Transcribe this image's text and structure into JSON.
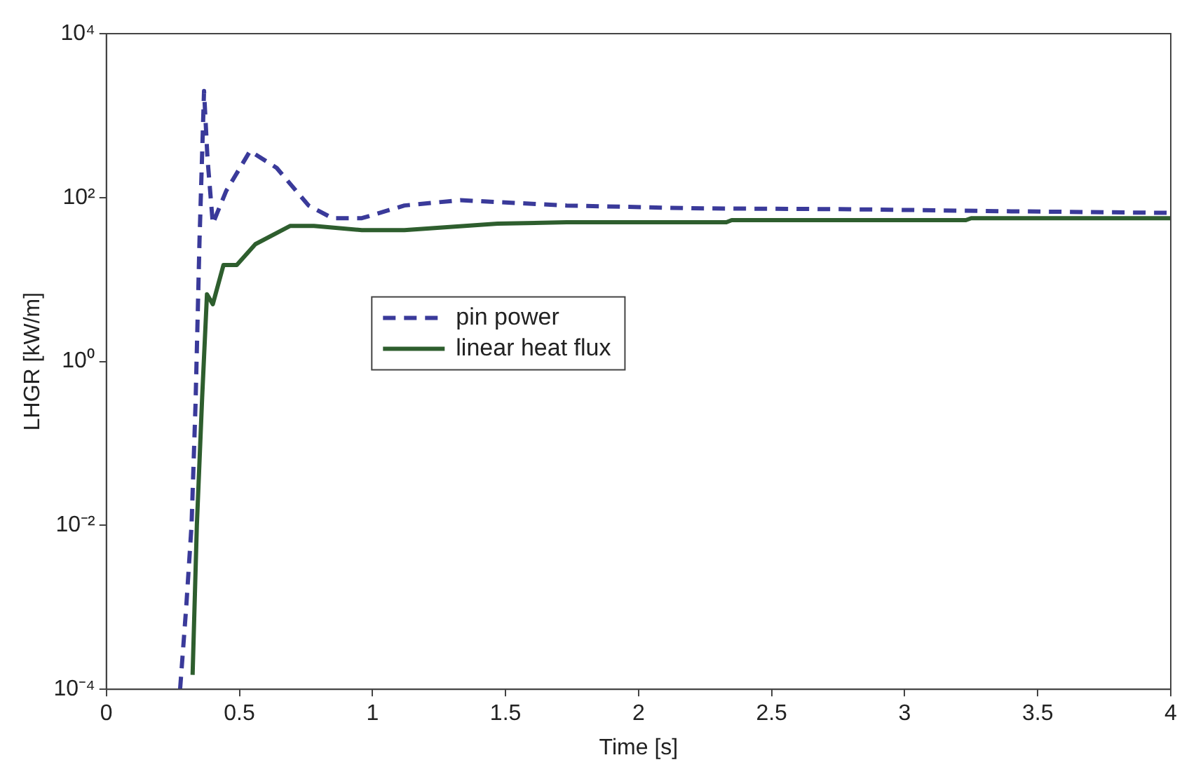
{
  "chart_data": {
    "type": "line",
    "xlabel": "Time [s]",
    "ylabel": "LHGR [kW/m]",
    "xlim": [
      0,
      4
    ],
    "xticks": [
      0,
      0.5,
      1,
      1.5,
      2,
      2.5,
      3,
      3.5,
      4
    ],
    "ylim": [
      0.0001,
      10000
    ],
    "yticks": [
      {
        "value": 0.0001,
        "label": "10⁻⁴"
      },
      {
        "value": 0.01,
        "label": "10⁻²"
      },
      {
        "value": 1,
        "label": "10⁰"
      },
      {
        "value": 100,
        "label": "10²"
      },
      {
        "value": 10000,
        "label": "10⁴"
      }
    ],
    "log": "y",
    "grid": false,
    "legend": "center",
    "marker": "none",
    "series": [
      {
        "name": "pin power",
        "color": "#3a3a9a",
        "line_style": "dashed",
        "x": [
          0.277,
          0.3,
          0.32,
          0.335,
          0.35,
          0.367,
          0.38,
          0.4,
          0.45,
          0.54,
          0.64,
          0.76,
          0.85,
          0.96,
          1.12,
          1.33,
          1.47,
          1.73,
          2.2,
          2.8,
          3.4,
          4
        ],
        "values": [
          0.0001,
          0.001,
          0.01,
          0.3,
          30,
          2000,
          300,
          48,
          120,
          370,
          230,
          80,
          56,
          56,
          80,
          93,
          88,
          80,
          74,
          72,
          68,
          65
        ]
      },
      {
        "name": "linear heat flux",
        "color": "#2e5e2e",
        "line_style": "solid",
        "x": [
          0.324,
          0.34,
          0.36,
          0.378,
          0.4,
          0.44,
          0.49,
          0.56,
          0.69,
          0.78,
          0.96,
          1.12,
          1.47,
          1.73,
          2.33,
          2.35,
          3.23,
          3.25,
          4
        ],
        "values": [
          0.00015,
          0.01,
          0.37,
          6.6,
          5,
          15,
          15,
          27,
          45,
          45,
          40,
          40,
          48,
          50,
          50,
          53,
          53,
          56,
          56
        ]
      }
    ]
  }
}
